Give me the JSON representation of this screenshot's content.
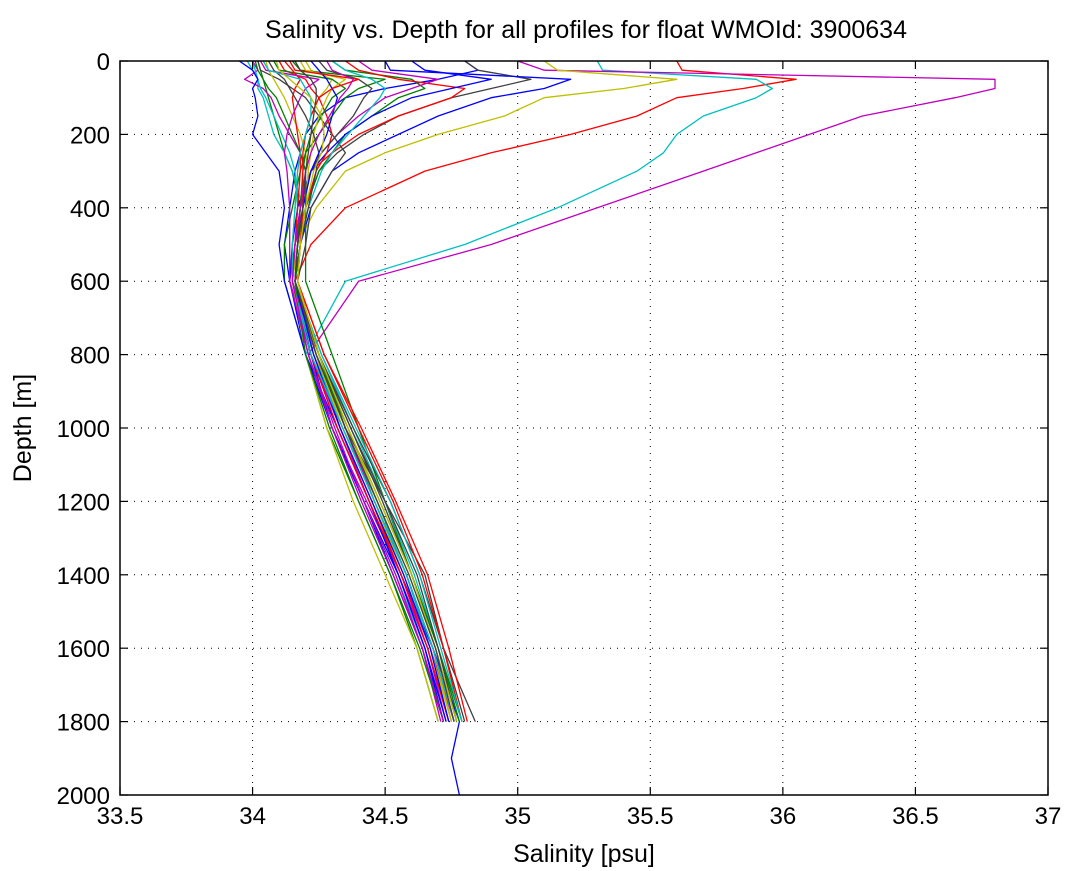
{
  "chart_data": {
    "type": "line",
    "title": "Salinity vs. Depth for all profiles for float WMOId: 3900634",
    "xlabel": "Salinity [psu]",
    "ylabel": "Depth [m]",
    "xlim": [
      33.5,
      37
    ],
    "ylim": [
      0,
      2000
    ],
    "y_inverted": true,
    "grid": true,
    "legend": "none",
    "xticks": [
      "33.5",
      "34",
      "34.5",
      "35",
      "35.5",
      "36",
      "36.5",
      "37"
    ],
    "yticks": [
      "0",
      "200",
      "400",
      "600",
      "800",
      "1000",
      "1200",
      "1400",
      "1600",
      "1800",
      "2000"
    ],
    "colors": [
      "#0000ff",
      "#008000",
      "#ff0000",
      "#00bfbf",
      "#bf00bf",
      "#bfbf00",
      "#404040"
    ],
    "depths": [
      0,
      25,
      50,
      75,
      100,
      150,
      200,
      250,
      300,
      400,
      500,
      600,
      800,
      1000,
      1200,
      1400,
      1600,
      1800
    ],
    "series": [
      {
        "values": [
          34.8,
          34.85,
          34.7,
          34.5,
          34.35,
          34.25,
          34.2,
          34.18,
          34.16,
          34.14,
          34.12,
          34.14,
          34.22,
          34.32,
          34.44,
          34.56,
          34.68,
          34.78
        ],
        "extend": [
          [
            1900,
            34.75
          ],
          [
            2000,
            34.78
          ]
        ]
      },
      {
        "values": [
          34.02,
          34.03,
          34.04,
          34.05,
          34.06,
          34.08,
          34.1,
          34.12,
          34.15,
          34.18,
          34.17,
          34.15,
          34.25,
          34.35,
          34.46,
          34.58,
          34.68,
          34.76
        ]
      },
      {
        "values": [
          35.6,
          35.62,
          36.05,
          35.85,
          35.6,
          35.45,
          35.2,
          34.9,
          34.65,
          34.35,
          34.22,
          34.16,
          34.24,
          34.33,
          34.45,
          34.56,
          34.66,
          34.74
        ]
      },
      {
        "values": [
          35.3,
          35.32,
          35.9,
          35.96,
          35.9,
          35.7,
          35.6,
          35.55,
          35.45,
          35.15,
          34.8,
          34.35,
          34.2,
          34.3,
          34.42,
          34.54,
          34.65,
          34.72
        ]
      },
      {
        "values": [
          35.0,
          35.1,
          36.8,
          36.8,
          36.65,
          36.3,
          36.1,
          35.9,
          35.7,
          35.3,
          34.9,
          34.4,
          34.21,
          34.3,
          34.43,
          34.56,
          34.67,
          34.76
        ]
      },
      {
        "values": [
          35.1,
          35.15,
          35.6,
          35.4,
          35.1,
          34.95,
          34.7,
          34.5,
          34.35,
          34.24,
          34.17,
          34.15,
          34.24,
          34.36,
          34.47,
          34.59,
          34.69,
          34.77
        ]
      },
      {
        "values": [
          34.8,
          34.85,
          35.05,
          34.9,
          34.75,
          34.55,
          34.42,
          34.32,
          34.25,
          34.2,
          34.16,
          34.15,
          34.24,
          34.35,
          34.5,
          34.65,
          34.72,
          34.84
        ]
      },
      {
        "values": [
          34.5,
          34.52,
          35.2,
          35.1,
          34.9,
          34.7,
          34.55,
          34.4,
          34.3,
          34.22,
          34.18,
          34.16,
          34.22,
          34.3,
          34.42,
          34.53,
          34.64,
          34.72
        ]
      },
      {
        "values": [
          34.3,
          34.35,
          34.6,
          34.65,
          34.55,
          34.45,
          34.35,
          34.3,
          34.25,
          34.2,
          34.2,
          34.2,
          34.3,
          34.4,
          34.5,
          34.6,
          34.7,
          34.79
        ]
      },
      {
        "values": [
          34.35,
          34.4,
          34.55,
          34.8,
          34.75,
          34.55,
          34.4,
          34.3,
          34.22,
          34.18,
          34.16,
          34.15,
          34.22,
          34.34,
          34.46,
          34.58,
          34.68,
          34.75
        ]
      },
      {
        "values": [
          33.98,
          34.0,
          34.02,
          34.02,
          34.04,
          34.06,
          34.08,
          34.12,
          34.15,
          34.19,
          34.18,
          34.16,
          34.26,
          34.38,
          34.5,
          34.61,
          34.7,
          34.78
        ]
      },
      {
        "values": [
          34.0,
          34.02,
          33.97,
          34.04,
          34.07,
          34.1,
          34.14,
          34.18,
          34.2,
          34.19,
          34.16,
          34.14,
          34.22,
          34.33,
          34.44,
          34.55,
          34.66,
          34.73
        ]
      },
      {
        "values": [
          34.2,
          34.22,
          34.3,
          34.28,
          34.25,
          34.22,
          34.2,
          34.18,
          34.17,
          34.16,
          34.15,
          34.15,
          34.23,
          34.35,
          34.47,
          34.58,
          34.68,
          34.75
        ]
      },
      {
        "values": [
          34.02,
          34.03,
          34.1,
          34.15,
          34.2,
          34.25,
          34.3,
          34.35,
          34.3,
          34.22,
          34.2,
          34.17,
          34.25,
          34.38,
          34.52,
          34.63,
          34.72,
          34.8
        ]
      },
      {
        "values": [
          34.6,
          34.65,
          34.9,
          34.75,
          34.6,
          34.45,
          34.35,
          34.28,
          34.22,
          34.17,
          34.15,
          34.14,
          34.2,
          34.32,
          34.44,
          34.55,
          34.65,
          34.72
        ]
      },
      {
        "values": [
          34.15,
          34.18,
          34.5,
          34.4,
          34.35,
          34.3,
          34.25,
          34.2,
          34.18,
          34.15,
          34.12,
          34.12,
          34.2,
          34.28,
          34.4,
          34.52,
          34.62,
          34.7
        ]
      },
      {
        "values": [
          34.1,
          34.12,
          34.2,
          34.22,
          34.25,
          34.28,
          34.3,
          34.28,
          34.24,
          34.2,
          34.18,
          34.17,
          34.27,
          34.4,
          34.53,
          34.64,
          34.72,
          34.79
        ]
      },
      {
        "values": [
          34.0,
          34.01,
          34.02,
          34.03,
          34.05,
          34.08,
          34.11,
          34.14,
          34.16,
          34.17,
          34.16,
          34.15,
          34.23,
          34.34,
          34.47,
          34.58,
          34.67,
          34.74
        ]
      },
      {
        "values": [
          34.4,
          34.45,
          34.7,
          34.6,
          34.5,
          34.4,
          34.32,
          34.26,
          34.22,
          34.18,
          34.16,
          34.15,
          34.24,
          34.35,
          34.46,
          34.58,
          34.68,
          34.76
        ]
      },
      {
        "values": [
          34.05,
          34.06,
          34.08,
          34.1,
          34.12,
          34.15,
          34.18,
          34.2,
          34.21,
          34.2,
          34.17,
          34.15,
          34.2,
          34.28,
          34.38,
          34.5,
          34.62,
          34.7
        ]
      },
      {
        "values": [
          34.25,
          34.28,
          34.4,
          34.45,
          34.42,
          34.38,
          34.32,
          34.26,
          34.22,
          34.19,
          34.17,
          34.16,
          34.25,
          34.37,
          34.49,
          34.6,
          34.69,
          34.77
        ]
      },
      {
        "values": [
          33.95,
          34.0,
          34.02,
          34.0,
          34.01,
          34.02,
          34.0,
          34.05,
          34.1,
          34.12,
          34.1,
          34.12,
          34.2,
          34.3,
          34.42,
          34.55,
          34.65,
          34.73
        ]
      },
      {
        "values": [
          34.08,
          34.1,
          34.3,
          34.35,
          34.3,
          34.26,
          34.22,
          34.2,
          34.19,
          34.18,
          34.17,
          34.16,
          34.24,
          34.36,
          34.48,
          34.6,
          34.7,
          34.78
        ]
      },
      {
        "values": [
          34.12,
          34.15,
          34.18,
          34.16,
          34.15,
          34.16,
          34.17,
          34.18,
          34.18,
          34.17,
          34.16,
          34.15,
          34.22,
          34.32,
          34.44,
          34.56,
          34.66,
          34.74
        ]
      },
      {
        "values": [
          34.3,
          34.35,
          34.45,
          34.5,
          34.48,
          34.42,
          34.36,
          34.3,
          34.26,
          34.21,
          34.18,
          34.16,
          34.26,
          34.39,
          34.52,
          34.63,
          34.71,
          34.79
        ]
      },
      {
        "values": [
          34.03,
          34.05,
          34.25,
          34.2,
          34.18,
          34.15,
          34.13,
          34.12,
          34.13,
          34.14,
          34.14,
          34.14,
          34.21,
          34.31,
          34.42,
          34.54,
          34.64,
          34.71
        ]
      },
      {
        "values": [
          34.18,
          34.2,
          34.35,
          34.3,
          34.28,
          34.25,
          34.23,
          34.22,
          34.21,
          34.2,
          34.18,
          34.17,
          34.24,
          34.34,
          34.46,
          34.57,
          34.67,
          34.75
        ]
      },
      {
        "values": [
          34.06,
          34.08,
          34.12,
          34.14,
          34.16,
          34.2,
          34.23,
          34.25,
          34.24,
          34.21,
          34.18,
          34.16,
          34.25,
          34.37,
          34.5,
          34.62,
          34.7,
          34.77
        ]
      },
      {
        "values": [
          34.22,
          34.25,
          34.28,
          34.3,
          34.32,
          34.3,
          34.28,
          34.25,
          34.22,
          34.19,
          34.17,
          34.16,
          34.23,
          34.33,
          34.45,
          34.57,
          34.67,
          34.74
        ]
      },
      {
        "values": [
          34.01,
          34.02,
          34.04,
          34.06,
          34.09,
          34.12,
          34.15,
          34.18,
          34.2,
          34.2,
          34.18,
          34.16,
          34.2,
          34.29,
          34.4,
          34.52,
          34.63,
          34.72
        ]
      },
      {
        "values": [
          34.14,
          34.16,
          34.4,
          34.3,
          34.25,
          34.22,
          34.2,
          34.19,
          34.19,
          34.19,
          34.18,
          34.17,
          34.27,
          34.41,
          34.54,
          34.66,
          34.74,
          34.81
        ]
      },
      {
        "values": [
          34.04,
          34.06,
          34.18,
          34.2,
          34.22,
          34.22,
          34.2,
          34.18,
          34.17,
          34.16,
          34.15,
          34.15,
          34.22,
          34.34,
          34.46,
          34.58,
          34.68,
          34.76
        ]
      },
      {
        "values": [
          34.28,
          34.3,
          34.38,
          34.36,
          34.33,
          34.29,
          34.25,
          34.22,
          34.2,
          34.18,
          34.16,
          34.15,
          34.21,
          34.3,
          34.41,
          34.53,
          34.64,
          34.72
        ]
      },
      {
        "values": [
          34.09,
          34.1,
          34.14,
          34.18,
          34.22,
          34.26,
          34.27,
          34.26,
          34.23,
          34.2,
          34.18,
          34.17,
          34.25,
          34.36,
          34.48,
          34.6,
          34.69,
          34.77
        ]
      },
      {
        "values": [
          34.16,
          34.18,
          34.22,
          34.24,
          34.24,
          34.23,
          34.22,
          34.21,
          34.2,
          34.19,
          34.17,
          34.16,
          34.24,
          34.35,
          34.47,
          34.59,
          34.69,
          34.76
        ]
      }
    ]
  }
}
